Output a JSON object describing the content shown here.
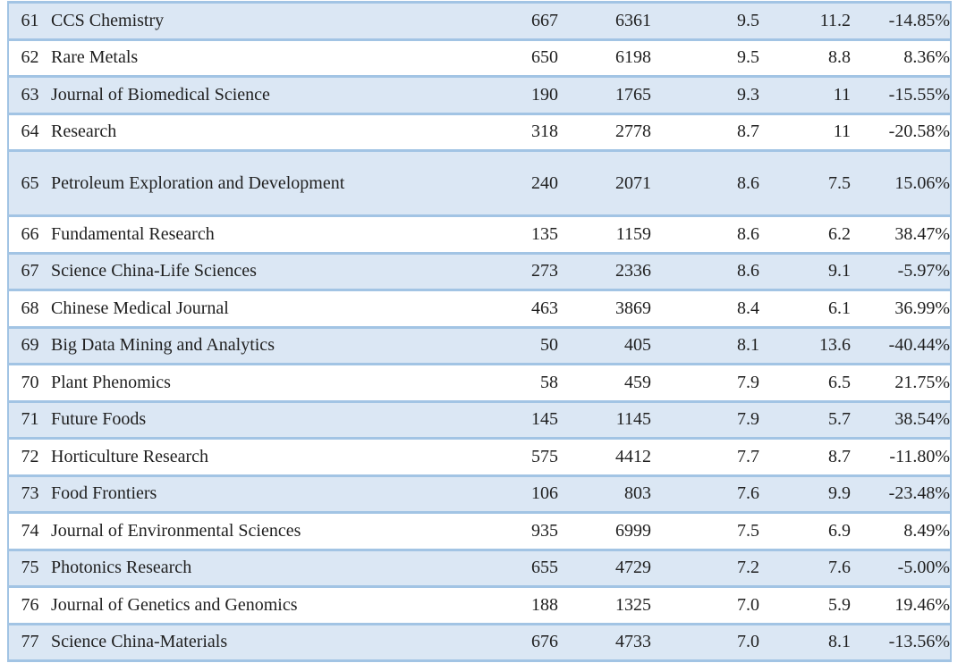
{
  "page": {
    "background": "#ffffff"
  },
  "colors": {
    "row_shade": "#dbe7f4",
    "row_plain": "#ffffff",
    "border": "#a2c4e4",
    "text": "#1f1f1f"
  },
  "chart_data": {
    "type": "table",
    "description": "Journal ranking table slice, ranks 61-77, no header row visible",
    "columns": [
      "rank",
      "journal_name",
      "articles",
      "citations",
      "metric_a",
      "metric_b",
      "change_percent"
    ],
    "tall_row_index": 4,
    "first_row_shaded": true,
    "rows": [
      [
        "61",
        "CCS Chemistry",
        "667",
        "6361",
        "9.5",
        "11.2",
        "-14.85%"
      ],
      [
        "62",
        "Rare Metals",
        "650",
        "6198",
        "9.5",
        "8.8",
        "8.36%"
      ],
      [
        "63",
        "Journal of Biomedical Science",
        "190",
        "1765",
        "9.3",
        "11",
        "-15.55%"
      ],
      [
        "64",
        "Research",
        "318",
        "2778",
        "8.7",
        "11",
        "-20.58%"
      ],
      [
        "65",
        "Petroleum Exploration and Development",
        "240",
        "2071",
        "8.6",
        "7.5",
        "15.06%"
      ],
      [
        "66",
        "Fundamental Research",
        "135",
        "1159",
        "8.6",
        "6.2",
        "38.47%"
      ],
      [
        "67",
        "Science China-Life Sciences",
        "273",
        "2336",
        "8.6",
        "9.1",
        "-5.97%"
      ],
      [
        "68",
        "Chinese Medical Journal",
        "463",
        "3869",
        "8.4",
        "6.1",
        "36.99%"
      ],
      [
        "69",
        "Big Data Mining and Analytics",
        "50",
        "405",
        "8.1",
        "13.6",
        "-40.44%"
      ],
      [
        "70",
        "Plant Phenomics",
        "58",
        "459",
        "7.9",
        "6.5",
        "21.75%"
      ],
      [
        "71",
        "Future Foods",
        "145",
        "1145",
        "7.9",
        "5.7",
        "38.54%"
      ],
      [
        "72",
        "Horticulture Research",
        "575",
        "4412",
        "7.7",
        "8.7",
        "-11.80%"
      ],
      [
        "73",
        "Food Frontiers",
        "106",
        "803",
        "7.6",
        "9.9",
        "-23.48%"
      ],
      [
        "74",
        "Journal of Environmental Sciences",
        "935",
        "6999",
        "7.5",
        "6.9",
        "8.49%"
      ],
      [
        "75",
        "Photonics Research",
        "655",
        "4729",
        "7.2",
        "7.6",
        "-5.00%"
      ],
      [
        "76",
        "Journal of Genetics and Genomics",
        "188",
        "1325",
        "7.0",
        "5.9",
        "19.46%"
      ],
      [
        "77",
        "Science China-Materials",
        "676",
        "4733",
        "7.0",
        "8.1",
        "-13.56%"
      ]
    ]
  }
}
